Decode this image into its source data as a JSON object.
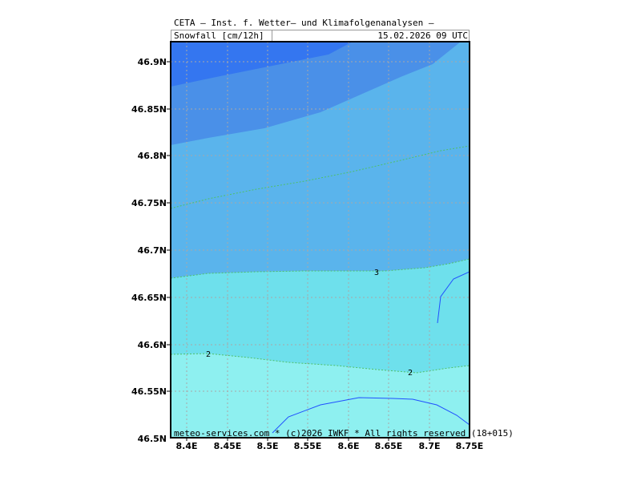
{
  "header": {
    "title": "CETA — Inst. f. Wetter— und Klimafolgenanalysen —",
    "variable": "Snowfall [cm/12h]",
    "valid_time": "15.02.2026 09 UTC"
  },
  "footer": {
    "credit": "meteo-services.com * (c)2026 IWKF * All rights reserved (18+015)"
  },
  "axes": {
    "lat_ticks": [
      "46.9N",
      "46.85N",
      "46.8N",
      "46.75N",
      "46.7N",
      "46.65N",
      "46.6N",
      "46.55N",
      "46.5N"
    ],
    "lon_ticks": [
      "8.4E",
      "8.45E",
      "8.5E",
      "8.55E",
      "8.6E",
      "8.65E",
      "8.7E",
      "8.75E"
    ]
  },
  "contour_labels": [
    "3",
    "2",
    "2"
  ],
  "colors": {
    "band_deep": "#3476f0",
    "band_mid": "#4a90e8",
    "band_light": "#5ab4ec",
    "band_cyan": "#6ee0ec",
    "band_pale": "#8ef0f0",
    "contour_line": "#4fc06a",
    "river": "#2050ff"
  }
}
